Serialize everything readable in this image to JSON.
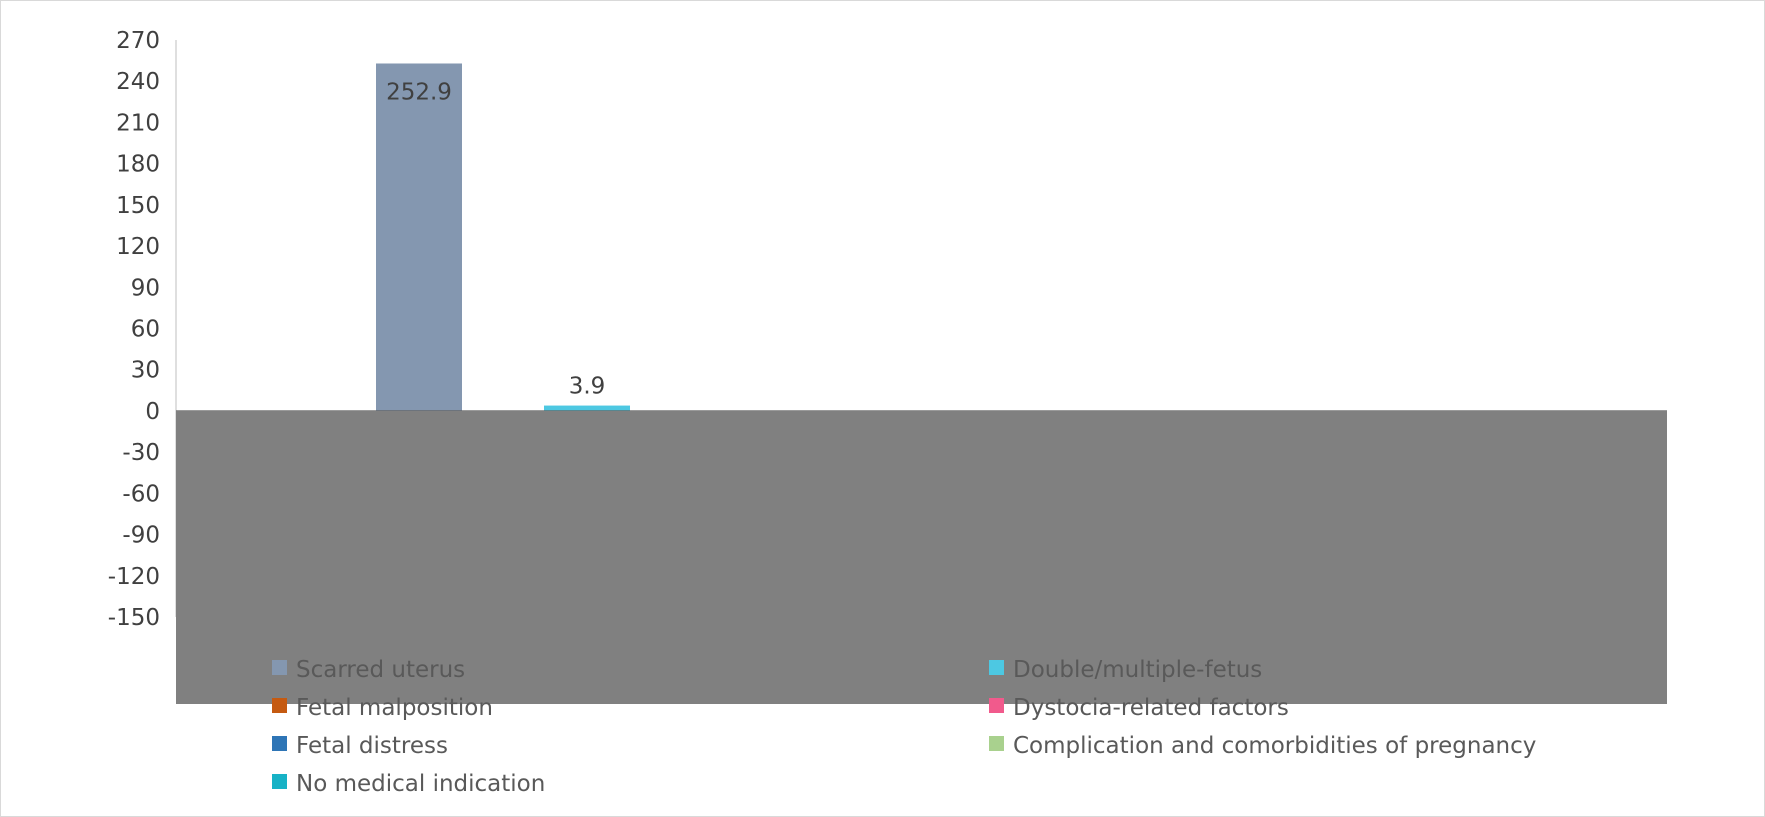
{
  "chart_data": {
    "type": "bar",
    "series": [
      {
        "name": "Scarred uterus",
        "color": "#8497B0",
        "value": 252.9,
        "label": "252.9"
      },
      {
        "name": "Double/multiple-fetus",
        "color": "#4DC8E2",
        "value": 3.9,
        "label": "3.9"
      },
      {
        "name": "Fetal malposition",
        "color": "#C55A11",
        "value": null,
        "label": ""
      },
      {
        "name": "Dystocia-related factors",
        "color": "#F15A8C",
        "value": null,
        "label": ""
      },
      {
        "name": "Fetal distress",
        "color": "#2E75B6",
        "value": null,
        "label": ""
      },
      {
        "name": "Complication and comorbidities of pregnancy",
        "color": "#A9D18E",
        "value": null,
        "label": ""
      },
      {
        "name": "No medical indication",
        "color": "#17B2C6",
        "value": null,
        "label": ""
      }
    ],
    "y_ticks": [
      "270",
      "240",
      "210",
      "180",
      "150",
      "120",
      "90",
      "60",
      "30",
      "0",
      "-30",
      "-60",
      "-90",
      "-120",
      "-150"
    ],
    "ylim": [
      -150,
      270
    ],
    "title": "",
    "xlabel": "",
    "ylabel": "",
    "legend_position": "bottom",
    "grid": false,
    "negative_region_color": "#808080"
  }
}
